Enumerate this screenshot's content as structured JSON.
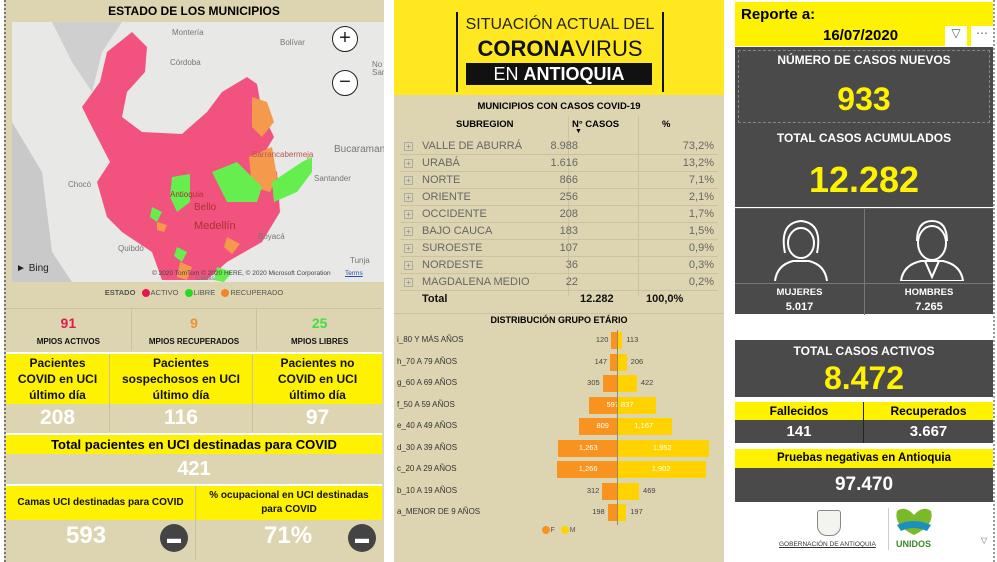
{
  "left": {
    "title": "ESTADO DE LOS MUNICIPIOS",
    "map": {
      "labels": [
        "Montería",
        "Bolívar",
        "Córdoba",
        "Barrancabermeja",
        "Bucaramanga",
        "Chocó",
        "Santander",
        "Antioquia",
        "Bello",
        "Medellín",
        "Boyacá",
        "Quibdó",
        "Tunja",
        "Caldas",
        "No",
        "San"
      ],
      "bing": "Bing",
      "copyright": "© 2020 TomTom © 2020 HERE, © 2020 Microsoft Corporation",
      "terms": "Terms",
      "zoom_in": "+",
      "zoom_out": "−",
      "colors": {
        "activo": "#f2527e",
        "libre": "#66ee4e",
        "recuperado": "#f59a4c"
      }
    },
    "legend": {
      "title": "ESTADO",
      "items": [
        {
          "label": "ACTIVO",
          "color": "#e8164f"
        },
        {
          "label": "LIBRE",
          "color": "#22dd22"
        },
        {
          "label": "RECUPERADO",
          "color": "#f58426"
        }
      ]
    },
    "stats": [
      {
        "value": "91",
        "label": "MPIOS ACTIVOS",
        "color": "#e01a4f"
      },
      {
        "value": "9",
        "label": "MPIOS RECUPERADOS",
        "color": "#f58f2a"
      },
      {
        "value": "25",
        "label": "MPIOS LIBRES",
        "color": "#3ee03e"
      }
    ],
    "uci": [
      {
        "label": "Pacientes COVID en UCI último día",
        "value": "208"
      },
      {
        "label": "Pacientes sospechosos en UCI último día",
        "value": "116"
      },
      {
        "label": "Pacientes no COVID en UCI último día",
        "value": "97"
      }
    ],
    "total_uci": {
      "label": "Total pacientes en UCI destinadas para COVID",
      "value": "421"
    },
    "camas": {
      "label": "Camas UCI destinadas para COVID",
      "value": "593"
    },
    "ocupacion": {
      "label": "% ocupacional en UCI destinadas para COVID",
      "value": "71%"
    }
  },
  "header": {
    "line1": "SITUACIÓN ACTUAL DEL",
    "corona": "CORONA",
    "virus": "VIRUS",
    "en": "EN",
    "antioquia": "ANTIOQUIA"
  },
  "table": {
    "title": "MUNICIPIOS CON CASOS COVID-19",
    "columns": [
      "SUBREGION",
      "N° CASOS",
      "%"
    ],
    "rows": [
      [
        "VALLE DE ABURRÁ",
        "8.988",
        "73,2%"
      ],
      [
        "URABÁ",
        "1.616",
        "13,2%"
      ],
      [
        "NORTE",
        "866",
        "7,1%"
      ],
      [
        "ORIENTE",
        "256",
        "2,1%"
      ],
      [
        "OCCIDENTE",
        "208",
        "1,7%"
      ],
      [
        "BAJO CAUCA",
        "183",
        "1,5%"
      ],
      [
        "SUROESTE",
        "107",
        "0,9%"
      ],
      [
        "NORDESTE",
        "36",
        "0,3%"
      ],
      [
        "MAGDALENA MEDIO",
        "22",
        "0,2%"
      ]
    ],
    "total": [
      "Total",
      "12.282",
      "100,0%"
    ]
  },
  "chart_data": {
    "type": "bar",
    "title": "DISTRIBUCIÓN GRUPO ETÁRIO",
    "categories": [
      "i_80 Y MÁS AÑOS",
      "h_70 A 79 AÑOS",
      "g_60 A 69 AÑOS",
      "f_50 A 59 AÑOS",
      "e_40 A 49 AÑOS",
      "d_30 A 39 AÑOS",
      "c_20 A 29 AÑOS",
      "b_10 A 19 AÑOS",
      "a_MENOR DE 9 AÑOS"
    ],
    "series": [
      {
        "name": "F",
        "color": "#f7931e",
        "values": [
          120,
          147,
          305,
          597,
          809,
          1263,
          1266,
          312,
          198
        ],
        "labels": [
          "120",
          "147",
          "305",
          "597",
          "809",
          "1,263",
          "1,266",
          "312",
          "198"
        ]
      },
      {
        "name": "M",
        "color": "#ffd200",
        "values": [
          113,
          206,
          422,
          837,
          1167,
          1952,
          1902,
          469,
          197
        ],
        "labels": [
          "113",
          "206",
          "422",
          "837",
          "1,167",
          "1,952",
          "1,902",
          "469",
          "197"
        ]
      }
    ],
    "legend": "bottom"
  },
  "right": {
    "report_label": "Reporte a:",
    "date": "16/07/2020",
    "nuevos": {
      "label": "NÚMERO DE CASOS NUEVOS",
      "value": "933"
    },
    "acumulados": {
      "label": "TOTAL CASOS ACUMULADOS",
      "value": "12.282"
    },
    "mujeres": {
      "label": "MUJERES",
      "value": "5.017"
    },
    "hombres": {
      "label": "HOMBRES",
      "value": "7.265"
    },
    "activos": {
      "label": "TOTAL CASOS ACTIVOS",
      "value": "8.472"
    },
    "fallecidos": {
      "label": "Fallecidos",
      "value": "141"
    },
    "recuperados": {
      "label": "Recuperados",
      "value": "3.667"
    },
    "pruebas": {
      "label": "Pruebas negativas en Antioquia",
      "value": "97.470"
    },
    "gob": "GOBERNACIÓN DE ANTIOQUIA",
    "unidos": "UNIDOS"
  }
}
